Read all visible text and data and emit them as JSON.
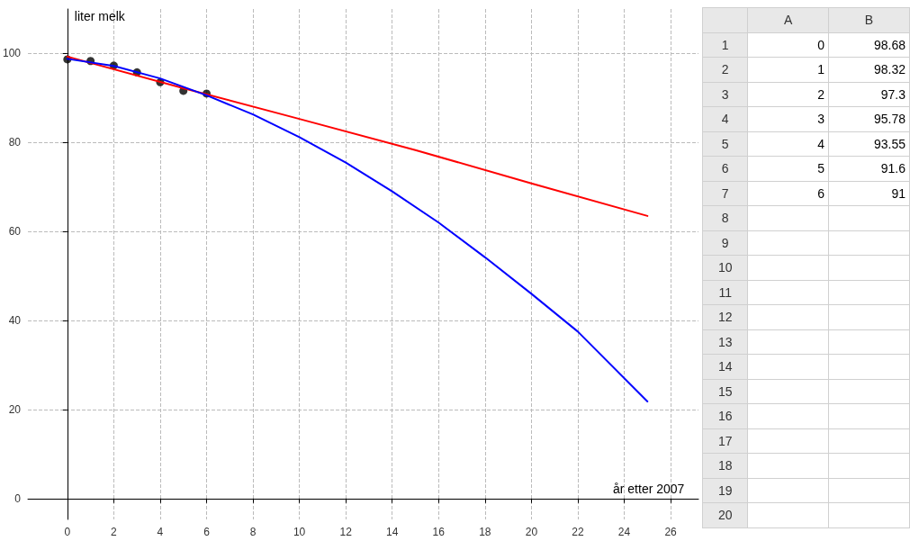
{
  "chart_data": {
    "type": "line",
    "xlabel": "år etter 2007",
    "ylabel": "liter melk",
    "xlim": [
      -1.7,
      27.2
    ],
    "ylim": [
      -4.7,
      110
    ],
    "xticks": [
      0,
      2,
      4,
      6,
      8,
      10,
      12,
      14,
      16,
      18,
      20,
      22,
      24,
      26
    ],
    "yticks": [
      0,
      20,
      40,
      60,
      80,
      100
    ],
    "grid": true,
    "line_style": "solid",
    "annotations": [
      "A",
      "B",
      "1",
      "2",
      "3",
      "4",
      "5",
      "6",
      "7",
      "8",
      "9",
      "10",
      "11",
      "12",
      "13",
      "14",
      "15",
      "16",
      "17",
      "18",
      "19",
      "20",
      "0",
      "98.68",
      "1",
      "98.32",
      "2",
      "97.3",
      "3",
      "95.78",
      "4",
      "93.55",
      "5",
      "91.6",
      "6",
      "91"
    ],
    "series": [
      {
        "type": "scatter",
        "marker": "circle",
        "color": "#000000",
        "x": [
          0,
          1,
          2,
          3,
          4,
          5,
          6
        ],
        "values": [
          98.68,
          98.32,
          97.3,
          95.78,
          93.55,
          91.6,
          91
        ]
      },
      {
        "marker": "none",
        "color": "#ff0000",
        "x": [
          0,
          5,
          10,
          15,
          20,
          25
        ],
        "values": [
          99.3,
          92.2,
          85.3,
          78.3,
          70.8,
          63.5
        ]
      },
      {
        "marker": "none",
        "color": "#0000ff",
        "x": [
          0,
          2,
          4,
          6,
          8,
          10,
          12,
          14,
          16,
          18,
          20,
          22,
          25
        ],
        "values": [
          98.8,
          97.2,
          94.4,
          90.6,
          86.3,
          81.2,
          75.5,
          69,
          62,
          54.2,
          46,
          37.5,
          21.8
        ]
      }
    ]
  }
}
